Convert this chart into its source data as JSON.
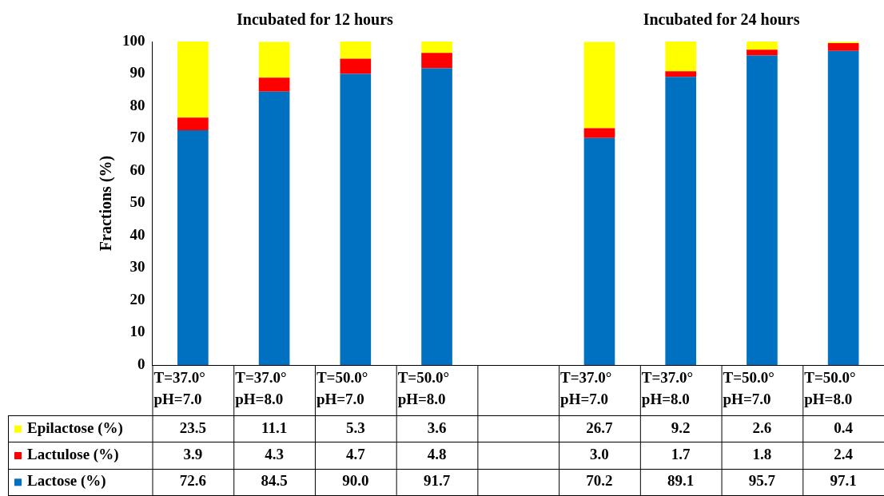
{
  "chart_data": {
    "type": "bar",
    "stacked": true,
    "ylabel": "Fractions (%)",
    "ylim": [
      0,
      100
    ],
    "yticks": [
      0,
      10,
      20,
      30,
      40,
      50,
      60,
      70,
      80,
      90,
      100
    ],
    "grid": false,
    "legend": "bottom",
    "data_labels": true,
    "annotations": [
      "Incubated for 12 hours",
      "Incubated for 24 hours"
    ],
    "categories": [
      "T=37.0°\npH=7.0",
      "T=37.0°\npH=8.0",
      "T=50.0°\npH=7.0",
      "T=50.0°\npH=8.0",
      null,
      "T=37.0°\npH=7.0",
      "T=37.0°\npH=8.0",
      "T=50.0°\npH=7.0",
      "T=50.0°\npH=8.0"
    ],
    "series": [
      {
        "name": "Lactose (%)",
        "color": "#0070c0",
        "values": [
          72.6,
          84.5,
          90.0,
          91.7,
          null,
          70.2,
          89.1,
          95.7,
          97.1
        ],
        "value_labels": [
          "72.6",
          "84.5",
          "90.0",
          "91.7",
          null,
          "70.2",
          "89.1",
          "95.7",
          "97.1"
        ]
      },
      {
        "name": "Lactulose (%)",
        "color": "#ff0000",
        "values": [
          3.9,
          4.3,
          4.7,
          4.8,
          null,
          3.0,
          1.7,
          1.8,
          2.4
        ],
        "value_labels": [
          "3.9",
          "4.3",
          "4.7",
          "4.8",
          null,
          "3.0",
          "1.7",
          "1.8",
          "2.4"
        ]
      },
      {
        "name": "Epilactose (%)",
        "color": "#ffff00",
        "values": [
          23.5,
          11.1,
          5.3,
          3.6,
          null,
          26.7,
          9.2,
          2.6,
          0.4
        ],
        "value_labels": [
          "23.5",
          "11.1",
          "5.3",
          "3.6",
          null,
          "26.7",
          "9.2",
          "2.6",
          "0.4"
        ]
      }
    ]
  }
}
